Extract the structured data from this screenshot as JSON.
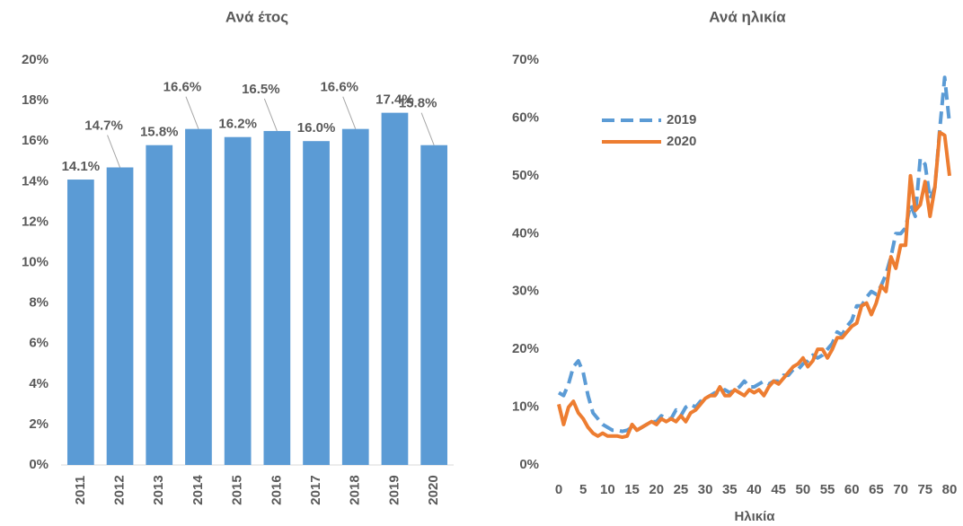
{
  "chart_data": [
    {
      "type": "bar",
      "title": "Ανά έτος",
      "categories": [
        "2011",
        "2012",
        "2013",
        "2014",
        "2015",
        "2016",
        "2017",
        "2018",
        "2019",
        "2020"
      ],
      "values": [
        14.1,
        14.7,
        15.8,
        16.6,
        16.2,
        16.5,
        16.0,
        16.6,
        17.4,
        15.8
      ],
      "value_labels": [
        "14.1%",
        "14.7%",
        "15.8%",
        "16.6%",
        "16.2%",
        "16.5%",
        "16.0%",
        "16.6%",
        "17.4%",
        "15.8%"
      ],
      "color": "#5b9bd5",
      "ylim": [
        0,
        20
      ],
      "yticks": [
        {
          "value": 0,
          "label": "0%"
        },
        {
          "value": 2,
          "label": "2%"
        },
        {
          "value": 4,
          "label": "4%"
        },
        {
          "value": 6,
          "label": "6%"
        },
        {
          "value": 8,
          "label": "8%"
        },
        {
          "value": 10,
          "label": "10%"
        },
        {
          "value": 12,
          "label": "12%"
        },
        {
          "value": 14,
          "label": "14%"
        },
        {
          "value": 16,
          "label": "16%"
        },
        {
          "value": 18,
          "label": "18%"
        },
        {
          "value": 20,
          "label": "20%"
        }
      ],
      "grid": false
    },
    {
      "type": "line",
      "title": "Ανά ηλικία",
      "xlabel": "Ηλικία",
      "x": [
        0,
        1,
        2,
        3,
        4,
        5,
        6,
        7,
        8,
        9,
        10,
        11,
        12,
        13,
        14,
        15,
        16,
        17,
        18,
        19,
        20,
        21,
        22,
        23,
        24,
        25,
        26,
        27,
        28,
        29,
        30,
        31,
        32,
        33,
        34,
        35,
        36,
        37,
        38,
        39,
        40,
        41,
        42,
        43,
        44,
        45,
        46,
        47,
        48,
        49,
        50,
        51,
        52,
        53,
        54,
        55,
        56,
        57,
        58,
        59,
        60,
        61,
        62,
        63,
        64,
        65,
        66,
        67,
        68,
        69,
        70,
        71,
        72,
        73,
        74,
        75,
        76,
        77,
        78,
        79,
        80
      ],
      "series": [
        {
          "name": "2019",
          "color": "#5b9bd5",
          "line_style": "dashed",
          "values": [
            12.5,
            12,
            14,
            17,
            18,
            16,
            12,
            9,
            8,
            7,
            6.5,
            6,
            6,
            5.8,
            6,
            6.5,
            6,
            6.5,
            7,
            7.5,
            7.5,
            8.5,
            8,
            8,
            9.5,
            8.5,
            10,
            10.5,
            10,
            11,
            11.5,
            12,
            12.5,
            12,
            13,
            12.5,
            13,
            13.5,
            14.5,
            13.5,
            13.5,
            14,
            14.5,
            14,
            14.5,
            14.5,
            15.5,
            15.5,
            16.5,
            16.5,
            17.5,
            18,
            19,
            18.5,
            19,
            20,
            21,
            23,
            22.5,
            24,
            25,
            27.5,
            27.5,
            29,
            30,
            29.5,
            31,
            33,
            36,
            40,
            40,
            41,
            45,
            43,
            53,
            52,
            46,
            48,
            58,
            67,
            59
          ]
        },
        {
          "name": "2020",
          "color": "#ed7d31",
          "line_style": "solid",
          "values": [
            10.5,
            7,
            10,
            11,
            9,
            8,
            6.5,
            5.5,
            5,
            5.5,
            5,
            5,
            5,
            4.8,
            5,
            7,
            6,
            6.5,
            7,
            7.5,
            7,
            8,
            7.5,
            8,
            7.5,
            8.5,
            7.5,
            9,
            9.5,
            10.5,
            11.5,
            12,
            12,
            13.5,
            12,
            12,
            13,
            12.5,
            12,
            13,
            12.5,
            13,
            12,
            13.5,
            14.5,
            14,
            15,
            16,
            17,
            17.5,
            18.5,
            17,
            18,
            20,
            20,
            18.5,
            20,
            22,
            22,
            23,
            24,
            24.5,
            27.5,
            28,
            26,
            28,
            31,
            30,
            36,
            34,
            38,
            38,
            50,
            44,
            45,
            49,
            43,
            48,
            57.5,
            57,
            50
          ]
        }
      ],
      "xlim": [
        0,
        80
      ],
      "xticks": [
        0,
        5,
        10,
        15,
        20,
        25,
        30,
        35,
        40,
        45,
        50,
        55,
        60,
        65,
        70,
        75,
        80
      ],
      "ylim": [
        0,
        70
      ],
      "yticks": [
        {
          "value": 0,
          "label": "0%"
        },
        {
          "value": 10,
          "label": "10%"
        },
        {
          "value": 20,
          "label": "20%"
        },
        {
          "value": 30,
          "label": "30%"
        },
        {
          "value": 40,
          "label": "40%"
        },
        {
          "value": 50,
          "label": "50%"
        },
        {
          "value": 60,
          "label": "60%"
        },
        {
          "value": 70,
          "label": "70%"
        }
      ],
      "legend": "upper left",
      "grid": false
    }
  ]
}
